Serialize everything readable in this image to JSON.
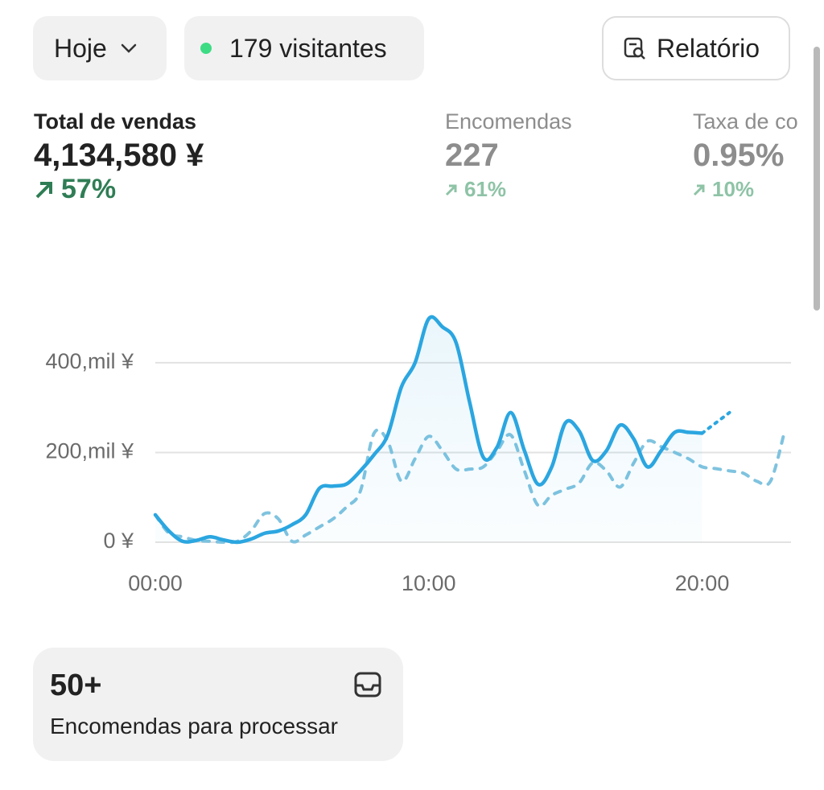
{
  "header": {
    "period": "Hoje",
    "visitors": "179 visitantes",
    "report": "Relatório"
  },
  "metrics": [
    {
      "label": "Total de vendas",
      "value": "4,134,580 ¥",
      "change": "57%"
    },
    {
      "label": "Encomendas",
      "value": "227",
      "change": "61%"
    },
    {
      "label": "Taxa de co",
      "value": "0.95%",
      "change": "10%"
    }
  ],
  "chart_data": {
    "type": "line",
    "x": [
      0,
      0.5,
      1,
      1.5,
      2,
      2.5,
      3,
      3.5,
      4,
      4.5,
      5,
      5.5,
      6,
      6.5,
      7,
      7.5,
      8,
      8.5,
      9,
      9.5,
      10,
      10.5,
      11,
      11.5,
      12,
      12.5,
      13,
      13.5,
      14,
      14.5,
      15,
      15.5,
      16,
      16.5,
      17,
      17.5,
      18,
      18.5,
      19,
      19.5,
      20,
      20.5,
      21,
      21.5,
      22,
      22.5,
      23
    ],
    "series": [
      {
        "color": "#2ba6e0",
        "style": "solid",
        "fill": true,
        "values": [
          61,
          25,
          2,
          4,
          12,
          5,
          0,
          7,
          20,
          25,
          39,
          61,
          120,
          125,
          130,
          159,
          195,
          239,
          346,
          400,
          498,
          480,
          445,
          311,
          189,
          212,
          289,
          204,
          129,
          168,
          266,
          248,
          182,
          204,
          261,
          230,
          168,
          204,
          245,
          245,
          243,
          null,
          null,
          null,
          null,
          null,
          null
        ]
      },
      {
        "color": "#2ba6e0",
        "style": "dotted",
        "values": [
          null,
          null,
          null,
          null,
          null,
          null,
          null,
          null,
          null,
          null,
          null,
          null,
          null,
          null,
          null,
          null,
          null,
          null,
          null,
          null,
          null,
          null,
          null,
          null,
          null,
          null,
          null,
          null,
          null,
          null,
          null,
          null,
          null,
          null,
          null,
          null,
          null,
          null,
          null,
          null,
          243,
          266,
          289,
          null,
          null,
          null,
          null
        ]
      },
      {
        "color": "#7fc3df",
        "style": "dashed",
        "values": [
          61,
          20,
          12,
          4,
          2,
          0,
          2,
          25,
          64,
          52,
          2,
          16,
          34,
          52,
          79,
          114,
          243,
          225,
          136,
          186,
          236,
          204,
          163,
          163,
          168,
          204,
          239,
          159,
          82,
          105,
          118,
          132,
          177,
          159,
          123,
          177,
          225,
          213,
          200,
          186,
          168,
          164,
          159,
          154,
          136,
          136,
          243
        ]
      }
    ],
    "xlim": [
      0,
      23.25
    ],
    "xticks": [
      {
        "value": 0,
        "label": "00:00"
      },
      {
        "value": 10,
        "label": "10:00"
      },
      {
        "value": 20,
        "label": "20:00"
      }
    ],
    "ylim": [
      0,
      520
    ],
    "yticks": [
      {
        "value": 0,
        "label": "0 ¥"
      },
      {
        "value": 200,
        "label": "200,mil ¥"
      },
      {
        "value": 400,
        "label": "400,mil ¥"
      }
    ],
    "grid": true
  },
  "card": {
    "value": "50+",
    "label": "Encomendas para processar"
  }
}
